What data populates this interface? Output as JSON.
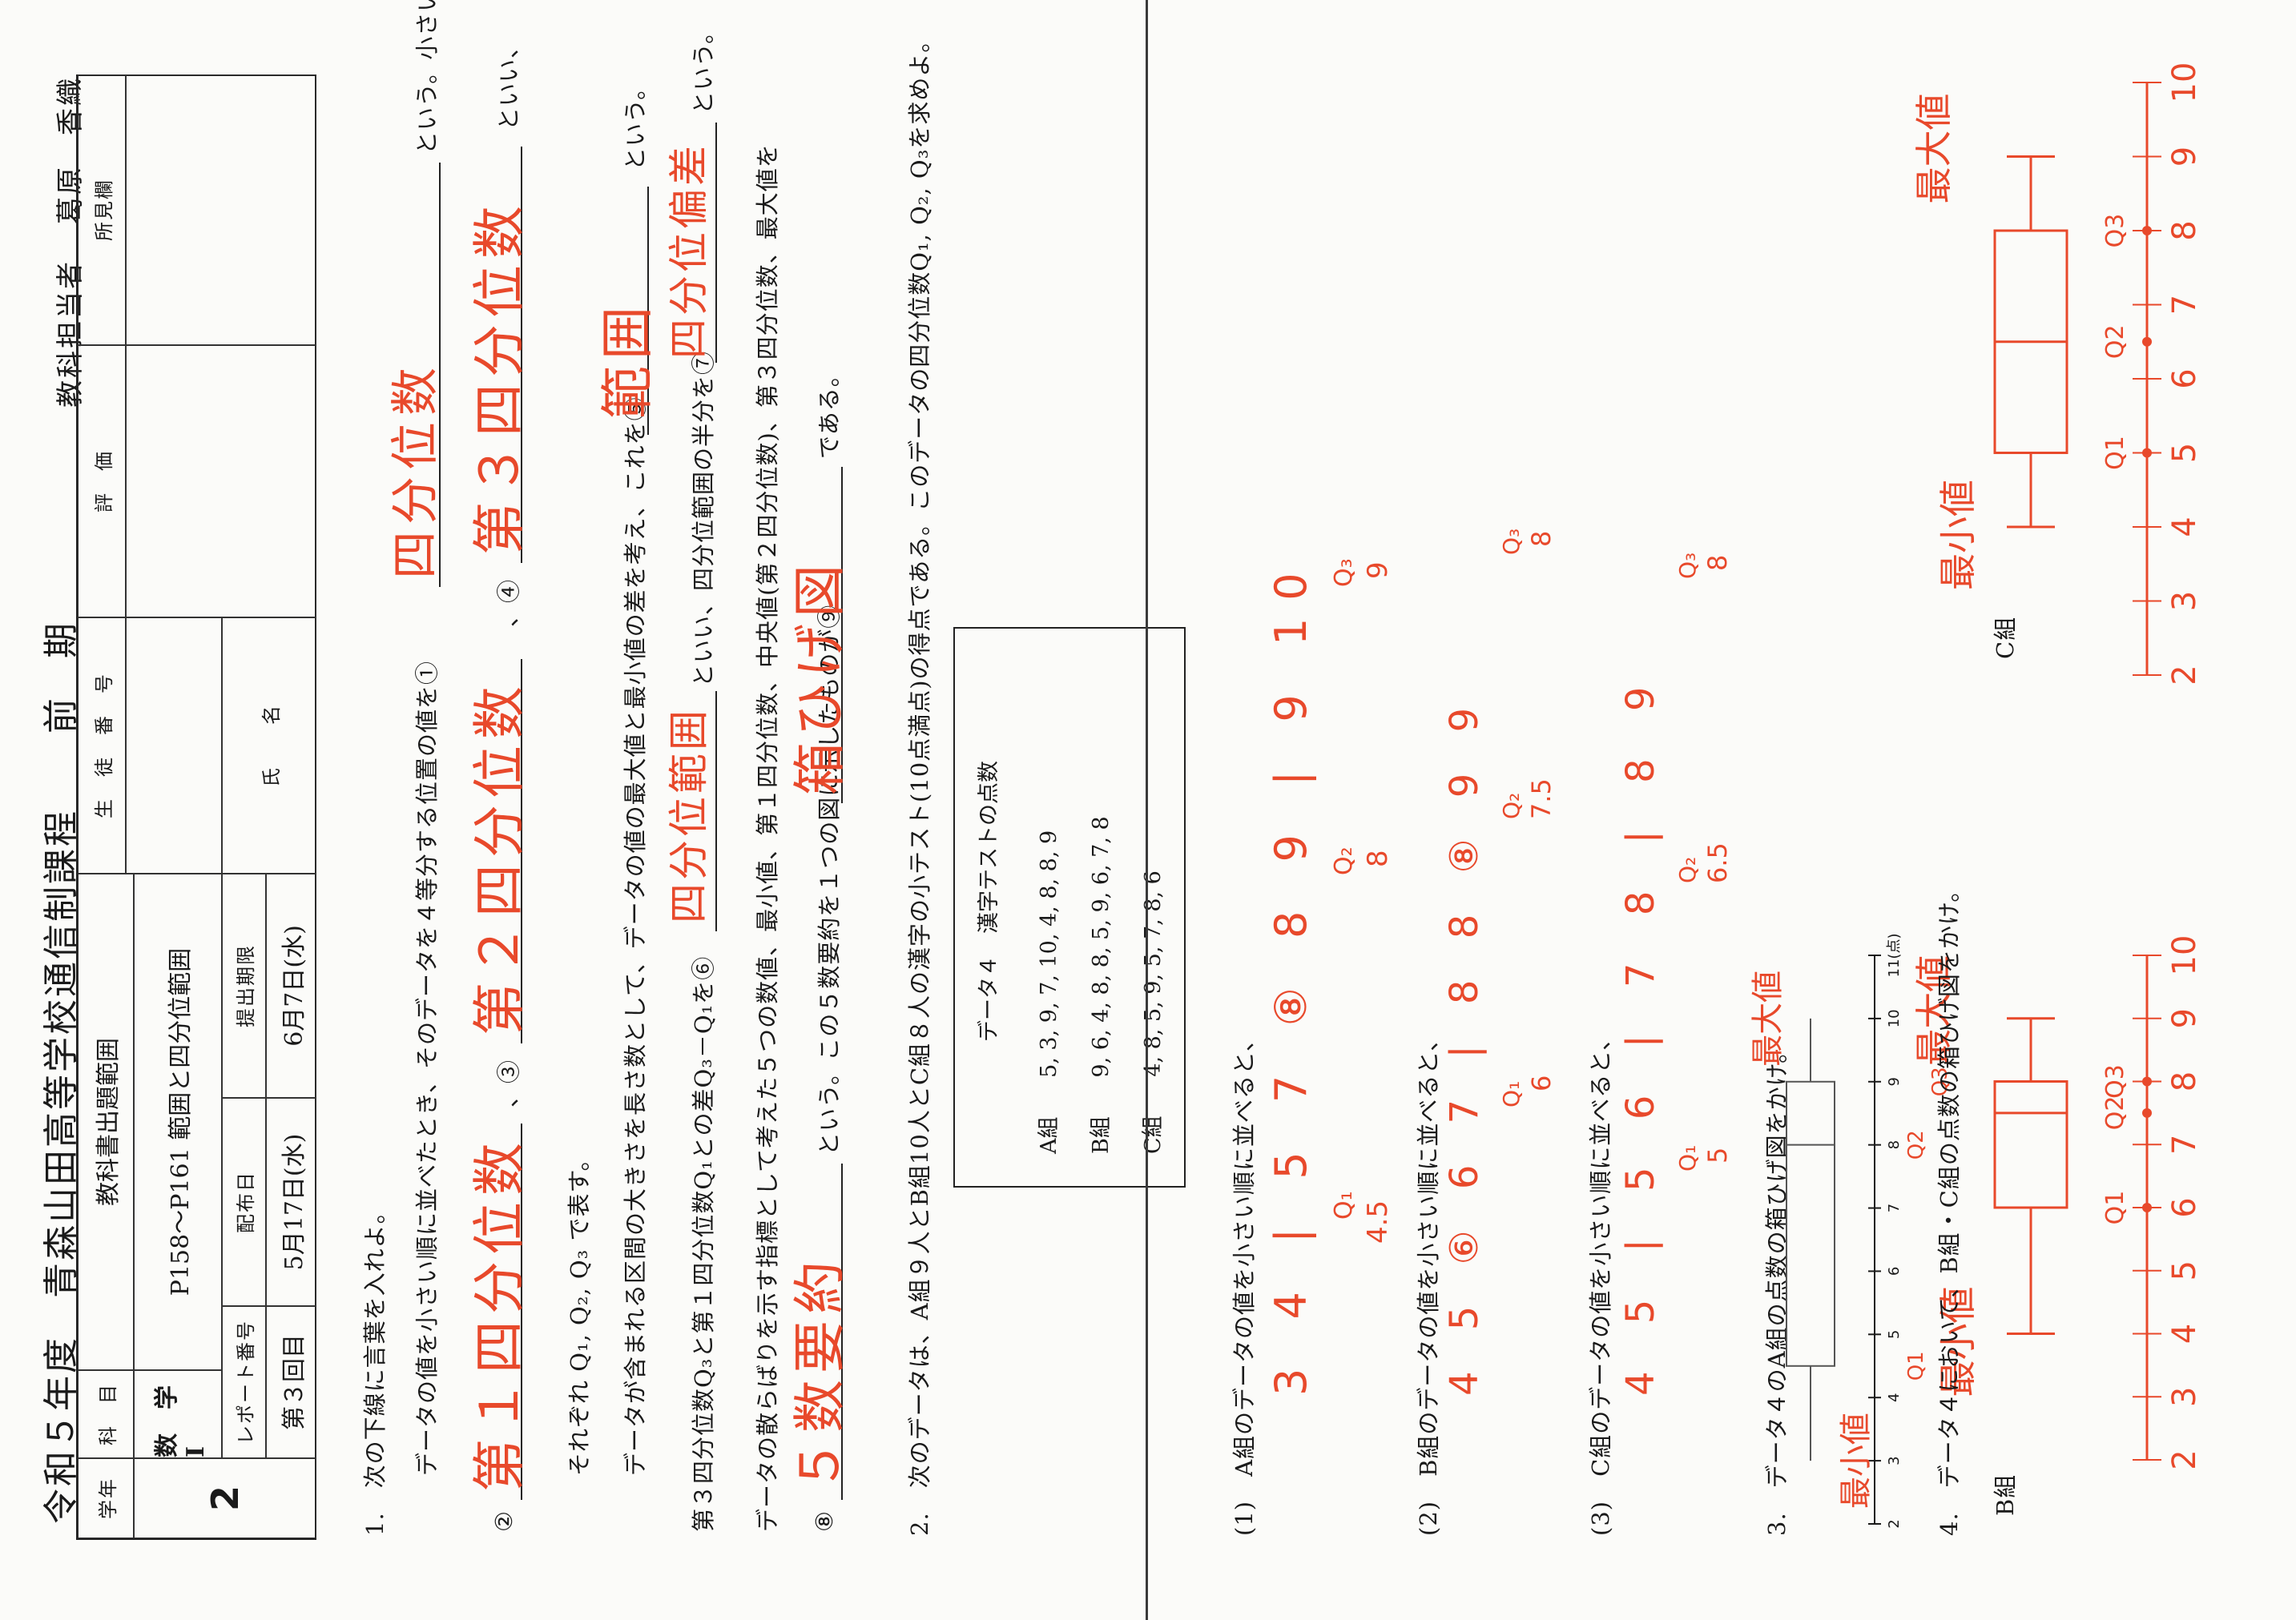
{
  "header": {
    "title": "令和５年度　青森山田高等学校通信制課程　　前　期",
    "teacher_label": "教科担当者",
    "teacher_name": "葛原　香織",
    "grade_label": "学年",
    "grade_value": "2",
    "subject_label": "科　目",
    "subject_value": "数　学　Ⅰ",
    "range_label": "教科書出題範囲",
    "range_value": "P158～P161 範囲と四分位範囲",
    "report_label": "レポート番号",
    "report_value": "第３回目",
    "issue_label": "配布日",
    "issue_value": "5月17日(水)",
    "deadline_label": "提出期限",
    "deadline_value": "6月7日(水)",
    "student_no_label": "生　徒　番　号",
    "name_label": "氏　　名",
    "eval_label": "評　価",
    "remarks_label": "所見欄"
  },
  "q1": {
    "intro": "1.　次の下線に言葉を入れよ。",
    "line1": "データの値を小さい順に並べたとき、そのデータを４等分する位置の値を①",
    "line1_end": "という。小さい方から順に、",
    "line2_a": "②",
    "line2_b": "、③",
    "line2_c": "、④",
    "line2_end": "といい、",
    "line3": "それぞれ Q₁, Q₂, Q₃ で表す。",
    "line4": "データが含まれる区間の大きさを長さ数として、データの値の最大値と最小値の差を考え、これを⑤",
    "line4_end": "という。",
    "line5": "第３四分位数Q₃と第１四分位数Q₁との差Q₃－Q₁を⑥",
    "line5_mid": "といい、四分位範囲の半分を⑦",
    "line5_end": "という。",
    "line6": "データの散らばりを示す指標として考えた５つの数値、最小値、第１四分位数、中央値(第２四分位数)、第３四分位数、最大値を",
    "line7_a": "⑧",
    "line7_b": "という。この５数要約を１つの図に示したものが⑨",
    "line7_end": "である。",
    "answers": [
      "四分位数",
      "第１四分位数",
      "第２四分位数",
      "第３四分位数",
      "範囲",
      "四分位範囲",
      "四分位偏差",
      "５数要約",
      "箱ひげ図"
    ]
  },
  "q2": {
    "intro": "2.　次のデータは、A組９人とB組10人とC組８人の漢字の小テスト(10点満点)の得点である。このデータの四分位数Q₁, Q₂, Q₃を求めよ。",
    "table_title": "データ４　漢字テストの点数",
    "rows": [
      {
        "label": "A組",
        "values": "5, 3, 9, 7, 10, 4, 8, 8, 9"
      },
      {
        "label": "B組",
        "values": "9, 6, 4, 8, 8, 5, 9, 6, 7, 8"
      },
      {
        "label": "C組",
        "values": "4, 8, 5, 9, 5, 7, 8, 6"
      }
    ],
    "sub1": "(1)　A組のデータの値を小さい順に並べると、",
    "sub2": "(2)　B組のデータの値を小さい順に並べると、",
    "sub3": "(3)　C組のデータの値を小さい順に並べると、",
    "hand_a": "3  4 | 5  7  ⑧  8  9 | 9  10",
    "hand_b": "4  5  ⑥  6  7 | 8  8  ⑧  9  9",
    "hand_c": "4  5 | 5  6 | 7  8 | 8  9",
    "hand_a_q": [
      "Q₁",
      "4.5",
      "Q₂",
      "8",
      "Q₃",
      "9"
    ],
    "hand_b_q": [
      "Q₁",
      "6",
      "Q₂",
      "7.5",
      "Q₃",
      "8"
    ],
    "hand_c_q": [
      "Q₁",
      "5",
      "Q₂",
      "6.5",
      "Q₃",
      "8"
    ]
  },
  "q3": {
    "intro": "3.　データ４のA組の点数の箱ひげ図をかけ。",
    "axis_ticks": [
      "2",
      "3",
      "4",
      "5",
      "6",
      "7",
      "8",
      "9",
      "10",
      "11(点)"
    ],
    "labels": [
      "最小値",
      "Q1",
      "Q2",
      "Q3",
      "最大値"
    ]
  },
  "q4": {
    "intro": "4.　データ４において、B組・C組の点数の箱ひげ図をかけ。",
    "b_label": "B組",
    "c_label": "C組",
    "b_ticks": [
      "2",
      "3",
      "4",
      "5",
      "6",
      "7",
      "8",
      "9",
      "10"
    ],
    "c_ticks": [
      "2",
      "3",
      "4",
      "5",
      "6",
      "7",
      "8",
      "9",
      "10"
    ],
    "labels_min": "最小値",
    "labels_max": "最大値",
    "q_labels": [
      "Q1",
      "Q2",
      "Q3"
    ]
  },
  "colors": {
    "ink": "#1a1a1a",
    "pen": "#e8492b"
  }
}
